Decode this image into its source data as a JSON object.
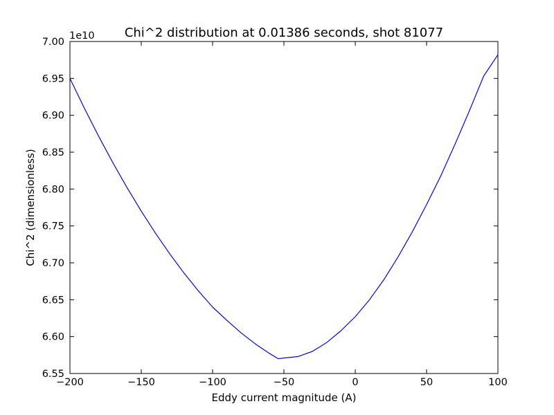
{
  "chart_data": {
    "type": "line",
    "title": "Chi^2 distribution at 0.01386 seconds, shot 81077",
    "xlabel": "Eddy current magnitude (A)",
    "ylabel": "Chi^2 (dimensionless)",
    "y_offset_label": "1e10",
    "xlim": [
      -200,
      100
    ],
    "ylim": [
      6.55,
      7.0
    ],
    "y_scale_factor": 10000000000.0,
    "grid": false,
    "legend": "none",
    "x_ticks": [
      -200,
      -150,
      -100,
      -50,
      0,
      50,
      100
    ],
    "x_tick_labels": [
      "−200",
      "−150",
      "−100",
      "−50",
      "0",
      "50",
      "100"
    ],
    "y_ticks": [
      6.55,
      6.6,
      6.65,
      6.7,
      6.75,
      6.8,
      6.85,
      6.9,
      6.95,
      7.0
    ],
    "y_tick_labels": [
      "6.55",
      "6.60",
      "6.65",
      "6.70",
      "6.75",
      "6.80",
      "6.85",
      "6.90",
      "6.95",
      "7.00"
    ],
    "series": [
      {
        "color": "#0000ff",
        "x": [
          -200,
          -190,
          -180,
          -170,
          -160,
          -150,
          -140,
          -130,
          -120,
          -110,
          -100,
          -90,
          -80,
          -70,
          -60,
          -54,
          -50,
          -40,
          -30,
          -20,
          -10,
          0,
          10,
          20,
          30,
          40,
          50,
          60,
          70,
          80,
          90,
          100
        ],
        "y": [
          6.95,
          6.91,
          6.872,
          6.836,
          6.802,
          6.77,
          6.74,
          6.712,
          6.686,
          6.662,
          6.64,
          6.622,
          6.605,
          6.59,
          6.577,
          6.57,
          6.571,
          6.573,
          6.58,
          6.592,
          6.608,
          6.627,
          6.65,
          6.677,
          6.708,
          6.742,
          6.779,
          6.818,
          6.861,
          6.906,
          6.953,
          6.982
        ]
      }
    ]
  }
}
